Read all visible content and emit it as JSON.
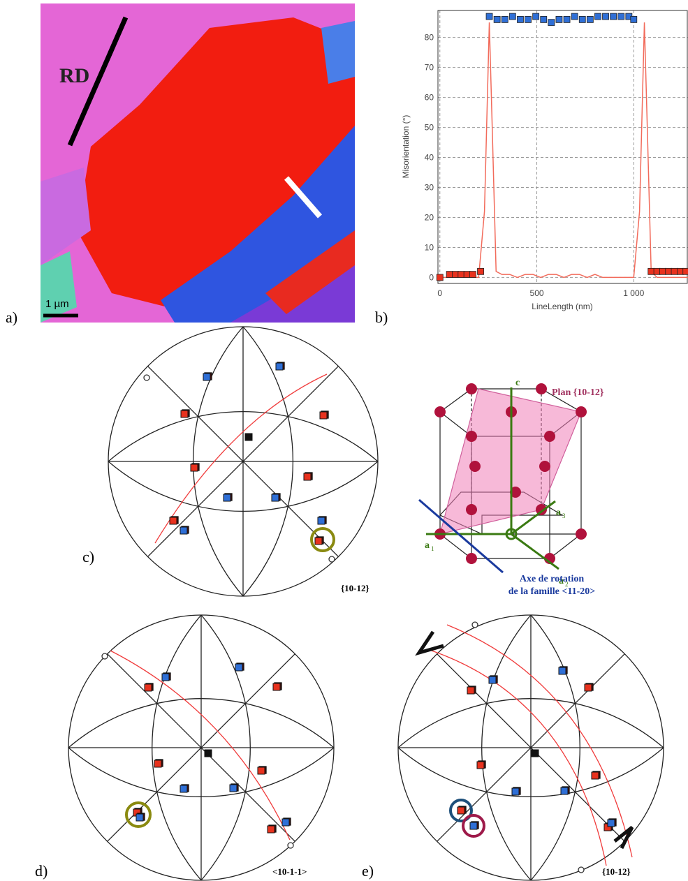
{
  "panel_labels": [
    "a)",
    "b)",
    "c)",
    "d)",
    "e)"
  ],
  "map": {
    "direction": "RD",
    "scale": "1 µm"
  },
  "chart_data": {
    "type": "line",
    "y_label": "Misorientation (°)",
    "x_label": "LineLength (nm)",
    "xlim": [
      -10,
      1280
    ],
    "ylim": [
      -2,
      89
    ],
    "xticks": [
      0,
      500,
      {
        "value": 1000,
        "label": "1 000"
      }
    ],
    "yticks": [
      0,
      10,
      20,
      30,
      40,
      50,
      60,
      70,
      80
    ],
    "grid": true,
    "series": [
      {
        "color": "#f26b5b",
        "marker": "none",
        "x": [
          0,
          100,
          200,
          230,
          255,
          270,
          290,
          320,
          360,
          400,
          440,
          480,
          520,
          560,
          600,
          640,
          680,
          720,
          760,
          800,
          840,
          880,
          920,
          960,
          1000,
          1030,
          1055,
          1070,
          1090,
          1120,
          1200,
          1280
        ],
        "values": [
          0,
          0,
          0,
          22,
          85,
          50,
          2,
          1,
          1,
          0,
          1,
          1,
          0,
          1,
          1,
          0,
          1,
          1,
          0,
          1,
          0,
          0,
          0,
          0,
          0,
          22,
          85,
          50,
          2,
          0,
          0,
          0
        ]
      },
      {
        "color": "#e8321e",
        "marker": "square",
        "x": [
          0,
          50,
          80,
          110,
          140,
          170,
          210
        ],
        "values": [
          0,
          1,
          1,
          1,
          1,
          1,
          2
        ]
      },
      {
        "color": "#2f6fd6",
        "marker": "square",
        "x": [
          255,
          295,
          335,
          375,
          415,
          455,
          495,
          535,
          575,
          615,
          655,
          695,
          735,
          775,
          815,
          855,
          895,
          935,
          975,
          1000
        ],
        "values": [
          87,
          86,
          86,
          87,
          86,
          86,
          87,
          86,
          85,
          86,
          86,
          87,
          86,
          86,
          87,
          87,
          87,
          87,
          87,
          86
        ]
      },
      {
        "color": "#e8321e",
        "marker": "square",
        "x": [
          1090,
          1120,
          1150,
          1180,
          1210,
          1240,
          1270
        ],
        "values": [
          2,
          2,
          2,
          2,
          2,
          2,
          2
        ]
      }
    ]
  },
  "pole_figures": {
    "c": "{10-12}",
    "d": "<10-1-1>",
    "e": "{10-12}"
  },
  "crystal": {
    "plane": "Plan {10-12}",
    "axis_line1": "Axe de rotation",
    "axis_line2": "de la famille <11-20>",
    "c_axis": "c",
    "a_axes": [
      "a",
      "a",
      "a"
    ],
    "a_subscripts": [
      "1",
      "2",
      "3"
    ]
  }
}
